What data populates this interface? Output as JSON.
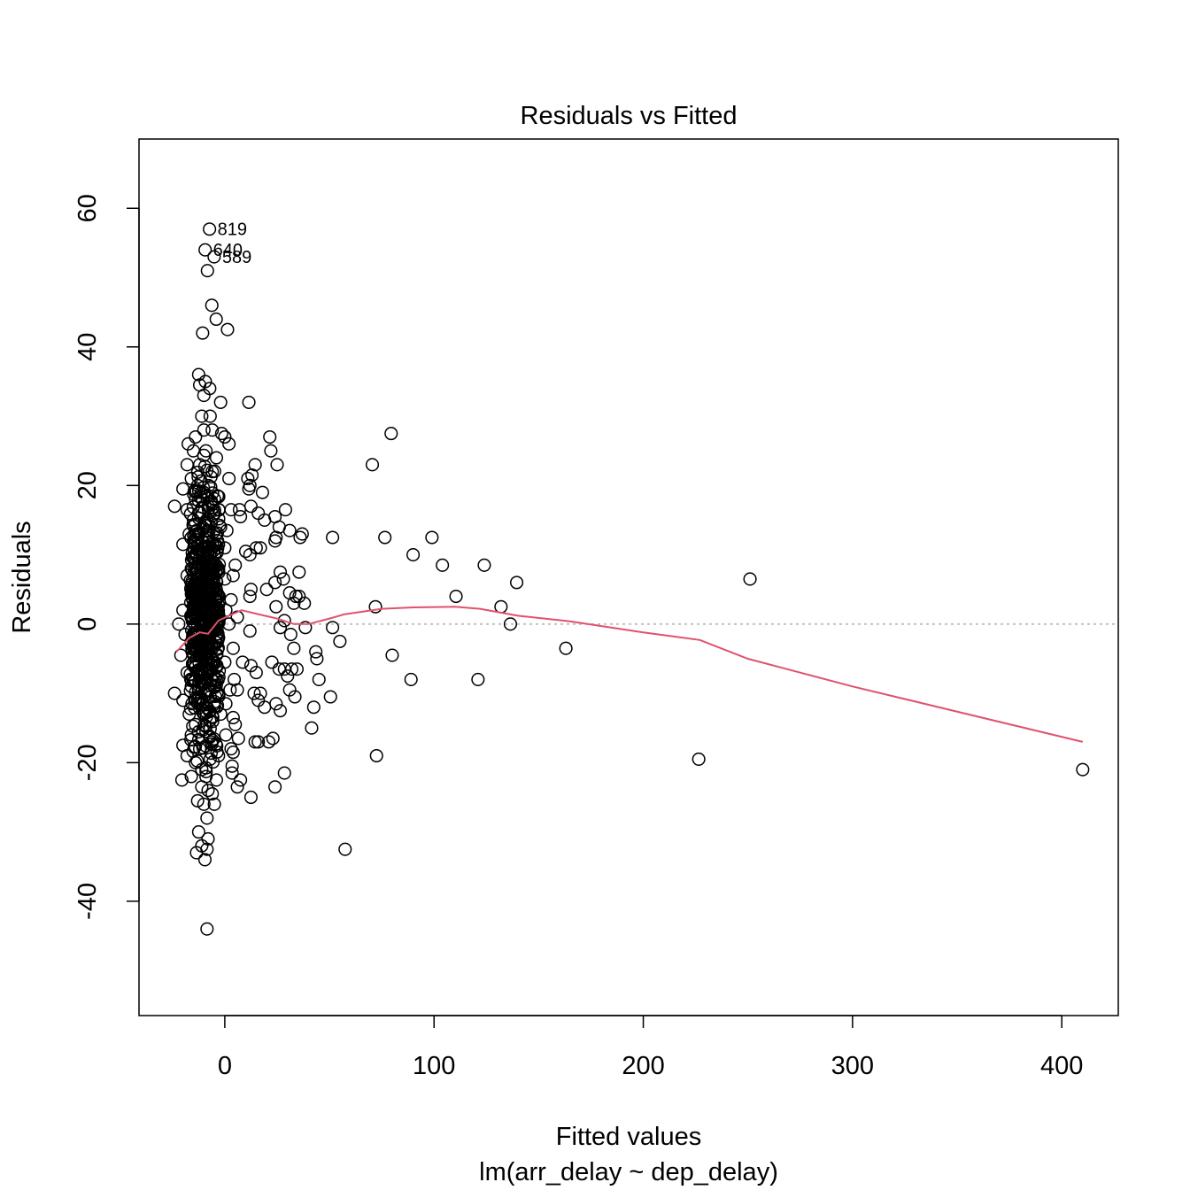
{
  "chart_data": {
    "type": "scatter",
    "title": "Residuals vs Fitted",
    "xlabel": "Fitted values",
    "subtitle": "lm(arr_delay ~ dep_delay)",
    "ylabel": "Residuals",
    "xlim": [
      -41,
      427
    ],
    "ylim": [
      -56.5,
      70
    ],
    "x_ticks": [
      0,
      100,
      200,
      300,
      400
    ],
    "y_ticks": [
      -40,
      -20,
      0,
      20,
      40,
      60
    ],
    "reference_line": {
      "y": 0,
      "style": "dotted",
      "color": "#BEBEBE"
    },
    "smooth_color": "#DF536B",
    "point_color": "#000000",
    "point_labels": [
      {
        "label": "819",
        "x": -7.3,
        "y": 57.0
      },
      {
        "label": "640",
        "x": -9.4,
        "y": 54.0
      },
      {
        "label": "589",
        "x": -5.1,
        "y": 53.0
      }
    ],
    "smooth": [
      {
        "x": -23,
        "y": -4.0
      },
      {
        "x": -17,
        "y": -2.0
      },
      {
        "x": -12,
        "y": -1.2
      },
      {
        "x": -8,
        "y": -1.4
      },
      {
        "x": -3,
        "y": 0.5
      },
      {
        "x": 2,
        "y": 1.2
      },
      {
        "x": 8,
        "y": 2.0
      },
      {
        "x": 15,
        "y": 1.5
      },
      {
        "x": 25,
        "y": 0.8
      },
      {
        "x": 33,
        "y": 0.0
      },
      {
        "x": 40,
        "y": 0.0
      },
      {
        "x": 50,
        "y": 0.8
      },
      {
        "x": 57,
        "y": 1.4
      },
      {
        "x": 75,
        "y": 2.2
      },
      {
        "x": 90,
        "y": 2.4
      },
      {
        "x": 110,
        "y": 2.5
      },
      {
        "x": 122,
        "y": 2.2
      },
      {
        "x": 140,
        "y": 1.2
      },
      {
        "x": 165,
        "y": 0.4
      },
      {
        "x": 200,
        "y": -1.2
      },
      {
        "x": 227,
        "y": -2.3
      },
      {
        "x": 250,
        "y": -5.0
      },
      {
        "x": 300,
        "y": -9.0
      },
      {
        "x": 410,
        "y": -17.0
      }
    ],
    "points": [
      {
        "x": -7.3,
        "y": 57.0
      },
      {
        "x": -9.4,
        "y": 54.0
      },
      {
        "x": -5.1,
        "y": 53.0
      },
      {
        "x": -8.3,
        "y": 51.0
      },
      {
        "x": -6.2,
        "y": 46.0
      },
      {
        "x": -4.1,
        "y": 44.0
      },
      {
        "x": -10.6,
        "y": 42.0
      },
      {
        "x": 1.3,
        "y": 42.5
      },
      {
        "x": -12.5,
        "y": 36.0
      },
      {
        "x": -9.3,
        "y": 35.0
      },
      {
        "x": -7.2,
        "y": 34.0
      },
      {
        "x": -12.0,
        "y": 34.5
      },
      {
        "x": -10.0,
        "y": 33.0
      },
      {
        "x": -2.0,
        "y": 32.0
      },
      {
        "x": 11.5,
        "y": 32.0
      },
      {
        "x": -11.0,
        "y": 30.0
      },
      {
        "x": -7.0,
        "y": 30.0
      },
      {
        "x": -10.0,
        "y": 28.0
      },
      {
        "x": -6.0,
        "y": 28.0
      },
      {
        "x": -14.0,
        "y": 27.0
      },
      {
        "x": -1.5,
        "y": 27.5
      },
      {
        "x": -17.5,
        "y": 26.0
      },
      {
        "x": 0.0,
        "y": 27.0
      },
      {
        "x": 2.0,
        "y": 26.0
      },
      {
        "x": -15.0,
        "y": 25.0
      },
      {
        "x": -9.0,
        "y": 25.0
      },
      {
        "x": -4.0,
        "y": 24.0
      },
      {
        "x": -18.0,
        "y": 23.0
      },
      {
        "x": -12.0,
        "y": 23.0
      },
      {
        "x": -6.0,
        "y": 22.0
      },
      {
        "x": 21.5,
        "y": 27.0
      },
      {
        "x": 22.0,
        "y": 25.0
      },
      {
        "x": 25.0,
        "y": 23.0
      },
      {
        "x": 14.5,
        "y": 23.0
      },
      {
        "x": 13.0,
        "y": 21.5
      },
      {
        "x": 11.0,
        "y": 21.0
      },
      {
        "x": 12.0,
        "y": 20.0
      },
      {
        "x": 11.5,
        "y": 19.5
      },
      {
        "x": 2.0,
        "y": 21.0
      },
      {
        "x": -16.0,
        "y": 21.0
      },
      {
        "x": -13.0,
        "y": 20.0
      },
      {
        "x": -20.0,
        "y": 19.5
      },
      {
        "x": -10.0,
        "y": 19.0
      },
      {
        "x": -3.5,
        "y": 18.5
      },
      {
        "x": 18.0,
        "y": 19.0
      },
      {
        "x": -14.0,
        "y": 18.0
      },
      {
        "x": -8.0,
        "y": 17.0
      },
      {
        "x": -24.0,
        "y": 17.0
      },
      {
        "x": -18.0,
        "y": 16.5
      },
      {
        "x": -12.0,
        "y": 16.0
      },
      {
        "x": -5.0,
        "y": 16.0
      },
      {
        "x": 3.0,
        "y": 16.5
      },
      {
        "x": 7.0,
        "y": 16.5
      },
      {
        "x": 12.5,
        "y": 17.0
      },
      {
        "x": 16.0,
        "y": 16.0
      },
      {
        "x": 29.0,
        "y": 16.5
      },
      {
        "x": 7.5,
        "y": 15.5
      },
      {
        "x": 19.0,
        "y": 15.0
      },
      {
        "x": 24.0,
        "y": 15.5
      },
      {
        "x": -15.0,
        "y": 15.0
      },
      {
        "x": -9.0,
        "y": 14.5
      },
      {
        "x": -2.0,
        "y": 14.0
      },
      {
        "x": 1.0,
        "y": 13.5
      },
      {
        "x": 26.0,
        "y": 14.0
      },
      {
        "x": 31.0,
        "y": 13.5
      },
      {
        "x": 37.0,
        "y": 13.0
      },
      {
        "x": 24.5,
        "y": 12.5
      },
      {
        "x": 36.0,
        "y": 12.5
      },
      {
        "x": 51.5,
        "y": 12.5
      },
      {
        "x": 76.5,
        "y": 12.5
      },
      {
        "x": 99.0,
        "y": 12.5
      },
      {
        "x": 70.5,
        "y": 23.0
      },
      {
        "x": 79.5,
        "y": 27.5
      },
      {
        "x": -17.0,
        "y": 13.0
      },
      {
        "x": -11.0,
        "y": 12.0
      },
      {
        "x": -20.0,
        "y": 11.5
      },
      {
        "x": -6.0,
        "y": 11.5
      },
      {
        "x": 0.0,
        "y": 11.0
      },
      {
        "x": 15.0,
        "y": 11.0
      },
      {
        "x": 17.0,
        "y": 11.0
      },
      {
        "x": 10.0,
        "y": 10.5
      },
      {
        "x": 24.0,
        "y": 12.0
      },
      {
        "x": 12.0,
        "y": 10.0
      },
      {
        "x": 90.0,
        "y": 10.0
      },
      {
        "x": 104.0,
        "y": 8.5
      },
      {
        "x": 124.0,
        "y": 8.5
      },
      {
        "x": -14.0,
        "y": 10.0
      },
      {
        "x": -8.0,
        "y": 9.0
      },
      {
        "x": -16.0,
        "y": 8.0
      },
      {
        "x": -3.0,
        "y": 8.0
      },
      {
        "x": 5.0,
        "y": 8.5
      },
      {
        "x": 26.5,
        "y": 7.5
      },
      {
        "x": 35.5,
        "y": 7.5
      },
      {
        "x": -18.0,
        "y": 7.0
      },
      {
        "x": -10.0,
        "y": 6.5
      },
      {
        "x": 0.0,
        "y": 6.5
      },
      {
        "x": 4.0,
        "y": 7.0
      },
      {
        "x": 28.0,
        "y": 6.5
      },
      {
        "x": 24.0,
        "y": 6.0
      },
      {
        "x": 110.5,
        "y": 4.0
      },
      {
        "x": 139.5,
        "y": 6.0
      },
      {
        "x": 251.0,
        "y": 6.5
      },
      {
        "x": -15.0,
        "y": 5.0
      },
      {
        "x": -6.0,
        "y": 5.0
      },
      {
        "x": 12.5,
        "y": 5.0
      },
      {
        "x": 20.0,
        "y": 5.0
      },
      {
        "x": 31.0,
        "y": 4.5
      },
      {
        "x": 34.0,
        "y": 4.0
      },
      {
        "x": 35.5,
        "y": 4.0
      },
      {
        "x": 12.0,
        "y": 4.0
      },
      {
        "x": -12.0,
        "y": 3.5
      },
      {
        "x": 3.0,
        "y": 3.5
      },
      {
        "x": 33.0,
        "y": 3.0
      },
      {
        "x": 38.0,
        "y": 3.0
      },
      {
        "x": 72.0,
        "y": 2.5
      },
      {
        "x": 132.0,
        "y": 2.5
      },
      {
        "x": 24.5,
        "y": 2.5
      },
      {
        "x": -20.0,
        "y": 2.0
      },
      {
        "x": -9.0,
        "y": 2.0
      },
      {
        "x": 0.5,
        "y": 2.0
      },
      {
        "x": -16.0,
        "y": 1.0
      },
      {
        "x": -4.0,
        "y": 1.0
      },
      {
        "x": 6.0,
        "y": 1.0
      },
      {
        "x": 28.5,
        "y": 0.5
      },
      {
        "x": -22.0,
        "y": 0.0
      },
      {
        "x": -13.0,
        "y": 0.0
      },
      {
        "x": -7.0,
        "y": -0.5
      },
      {
        "x": 2.0,
        "y": 0.0
      },
      {
        "x": 26.5,
        "y": -0.5
      },
      {
        "x": 38.5,
        "y": -0.5
      },
      {
        "x": 51.5,
        "y": -0.5
      },
      {
        "x": 136.5,
        "y": 0.0
      },
      {
        "x": -19.0,
        "y": -1.5
      },
      {
        "x": -11.0,
        "y": -2.0
      },
      {
        "x": -3.0,
        "y": -2.0
      },
      {
        "x": 12.0,
        "y": -1.0
      },
      {
        "x": 31.5,
        "y": -1.5
      },
      {
        "x": 55.0,
        "y": -2.5
      },
      {
        "x": -15.0,
        "y": -3.0
      },
      {
        "x": -6.0,
        "y": -3.5
      },
      {
        "x": 4.0,
        "y": -3.5
      },
      {
        "x": 33.0,
        "y": -3.5
      },
      {
        "x": 43.5,
        "y": -4.0
      },
      {
        "x": 44.0,
        "y": -5.0
      },
      {
        "x": 80.0,
        "y": -4.5
      },
      {
        "x": 163.0,
        "y": -3.5
      },
      {
        "x": -21.0,
        "y": -4.5
      },
      {
        "x": -9.0,
        "y": -5.0
      },
      {
        "x": 0.0,
        "y": -5.5
      },
      {
        "x": 8.5,
        "y": -5.5
      },
      {
        "x": 22.5,
        "y": -5.5
      },
      {
        "x": 12.5,
        "y": -6.0
      },
      {
        "x": 26.0,
        "y": -6.5
      },
      {
        "x": 28.5,
        "y": -6.5
      },
      {
        "x": 32.0,
        "y": -6.5
      },
      {
        "x": 34.5,
        "y": -6.5
      },
      {
        "x": 15.0,
        "y": -7.0
      },
      {
        "x": 30.0,
        "y": -7.5
      },
      {
        "x": -18.0,
        "y": -7.0
      },
      {
        "x": -12.0,
        "y": -7.5
      },
      {
        "x": -4.0,
        "y": -8.0
      },
      {
        "x": 4.5,
        "y": -8.0
      },
      {
        "x": 45.0,
        "y": -8.0
      },
      {
        "x": 89.0,
        "y": -8.0
      },
      {
        "x": 121.0,
        "y": -8.0
      },
      {
        "x": -16.0,
        "y": -9.0
      },
      {
        "x": -8.0,
        "y": -9.5
      },
      {
        "x": 2.5,
        "y": -9.5
      },
      {
        "x": 6.0,
        "y": -9.5
      },
      {
        "x": 31.0,
        "y": -9.5
      },
      {
        "x": 14.0,
        "y": -10.0
      },
      {
        "x": 33.5,
        "y": -10.5
      },
      {
        "x": 50.5,
        "y": -10.5
      },
      {
        "x": 17.0,
        "y": -10.0
      },
      {
        "x": -24.0,
        "y": -10.0
      },
      {
        "x": -20.0,
        "y": -11.0
      },
      {
        "x": -13.0,
        "y": -11.0
      },
      {
        "x": -5.0,
        "y": -11.5
      },
      {
        "x": 0.5,
        "y": -11.5
      },
      {
        "x": 16.0,
        "y": -11.0
      },
      {
        "x": 19.0,
        "y": -12.0
      },
      {
        "x": 24.5,
        "y": -11.5
      },
      {
        "x": 26.5,
        "y": -12.5
      },
      {
        "x": 42.5,
        "y": -12.0
      },
      {
        "x": -17.0,
        "y": -13.0
      },
      {
        "x": -10.0,
        "y": -13.0
      },
      {
        "x": -2.0,
        "y": -13.0
      },
      {
        "x": 4.0,
        "y": -13.5
      },
      {
        "x": -14.0,
        "y": -14.5
      },
      {
        "x": 5.0,
        "y": -14.5
      },
      {
        "x": 41.5,
        "y": -15.0
      },
      {
        "x": -9.0,
        "y": -15.5
      },
      {
        "x": -16.0,
        "y": -16.0
      },
      {
        "x": 0.5,
        "y": -16.0
      },
      {
        "x": 6.5,
        "y": -16.5
      },
      {
        "x": 14.5,
        "y": -17.0
      },
      {
        "x": 16.0,
        "y": -17.0
      },
      {
        "x": 21.0,
        "y": -17.0
      },
      {
        "x": 23.0,
        "y": -16.5
      },
      {
        "x": -20.0,
        "y": -17.5
      },
      {
        "x": -12.0,
        "y": -18.0
      },
      {
        "x": 3.0,
        "y": -18.0
      },
      {
        "x": 4.0,
        "y": -18.5
      },
      {
        "x": -18.0,
        "y": -19.0
      },
      {
        "x": -7.0,
        "y": -19.5
      },
      {
        "x": -3.0,
        "y": -19.0
      },
      {
        "x": 72.5,
        "y": -19.0
      },
      {
        "x": 226.5,
        "y": -19.5
      },
      {
        "x": -14.0,
        "y": -20.0
      },
      {
        "x": 3.5,
        "y": -20.5
      },
      {
        "x": -11.0,
        "y": -21.0
      },
      {
        "x": 3.5,
        "y": -21.5
      },
      {
        "x": 28.5,
        "y": -21.5
      },
      {
        "x": -16.0,
        "y": -22.0
      },
      {
        "x": -9.0,
        "y": -22.0
      },
      {
        "x": -4.0,
        "y": -22.5
      },
      {
        "x": 7.5,
        "y": -22.5
      },
      {
        "x": -20.5,
        "y": -22.5
      },
      {
        "x": -11.0,
        "y": -23.5
      },
      {
        "x": 6.0,
        "y": -23.5
      },
      {
        "x": 24.0,
        "y": -23.5
      },
      {
        "x": -8.0,
        "y": -24.0
      },
      {
        "x": -6.0,
        "y": -24.5
      },
      {
        "x": 12.5,
        "y": -25.0
      },
      {
        "x": -13.0,
        "y": -25.5
      },
      {
        "x": -10.0,
        "y": -26.0
      },
      {
        "x": -5.0,
        "y": -26.0
      },
      {
        "x": -8.5,
        "y": -28.0
      },
      {
        "x": -12.5,
        "y": -30.0
      },
      {
        "x": -8.0,
        "y": -31.0
      },
      {
        "x": -11.0,
        "y": -32.0
      },
      {
        "x": -8.5,
        "y": -32.5
      },
      {
        "x": -13.5,
        "y": -33.0
      },
      {
        "x": -9.5,
        "y": -34.0
      },
      {
        "x": 57.5,
        "y": -32.5
      },
      {
        "x": -8.5,
        "y": -44.0
      },
      {
        "x": 410.0,
        "y": -21.0
      }
    ],
    "dense_cluster": {
      "x_min": -16.5,
      "x_max": -2.5,
      "y_min": -25,
      "y_max": 28,
      "count": 560
    }
  }
}
